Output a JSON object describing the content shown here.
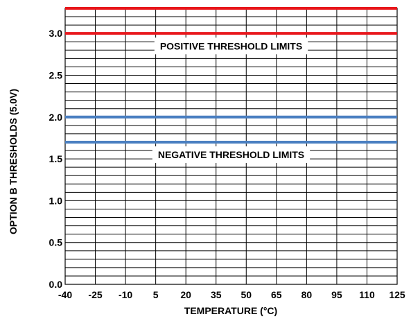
{
  "chart_data": {
    "type": "line",
    "title": "",
    "xlabel": "TEMPERATURE (°C)",
    "ylabel": "OPTION B THRESHOLDS (5.0V)",
    "xlim": [
      -40,
      125
    ],
    "ylim": [
      0.0,
      3.3
    ],
    "x_ticks": [
      "-40",
      "-25",
      "-10",
      "5",
      "20",
      "35",
      "50",
      "65",
      "80",
      "95",
      "110",
      "125"
    ],
    "y_ticks": [
      "0.0",
      "0.5",
      "1.0",
      "1.5",
      "2.0",
      "2.5",
      "3.0"
    ],
    "grid": true,
    "series": [
      {
        "x": [
          -40,
          125
        ],
        "y": [
          3.3,
          3.3
        ],
        "color": "#e8161b"
      },
      {
        "x": [
          -40,
          125
        ],
        "y": [
          3.0,
          3.0
        ],
        "color": "#e8161b"
      },
      {
        "x": [
          -40,
          125
        ],
        "y": [
          2.0,
          2.0
        ],
        "color": "#4a7fc1"
      },
      {
        "x": [
          -40,
          125
        ],
        "y": [
          1.7,
          1.7
        ],
        "color": "#4a7fc1"
      }
    ],
    "annotations": [
      {
        "text": "POSITIVE THRESHOLD LIMITS",
        "x": 42.5,
        "y": 2.85
      },
      {
        "text": "NEGATIVE THRESHOLD LIMITS",
        "x": 42.5,
        "y": 1.55
      }
    ]
  }
}
